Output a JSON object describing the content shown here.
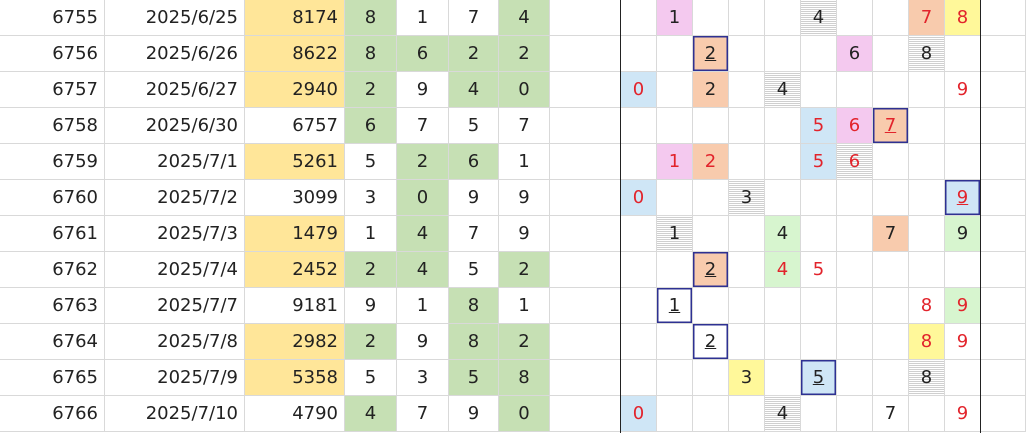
{
  "columns": [
    "row_no",
    "date",
    "number",
    "d1",
    "d2",
    "d3",
    "d4"
  ],
  "colors": {
    "number_yellow": "#ffe699",
    "digit_green": "#c6e0b4",
    "pink": "#f4c9ef",
    "orange": "#f8cbad",
    "lightblue": "#cfe6f6",
    "lightgreen": "#d7f5cf",
    "yellow": "#fff89a",
    "red_text": "#e2232b",
    "box_border": "#2e3192"
  },
  "rows": [
    {
      "id": "6755",
      "date": "2025/6/25",
      "number": "8174",
      "number_bg": "yellow",
      "digits": [
        {
          "v": "8",
          "g": true
        },
        {
          "v": "1",
          "g": false
        },
        {
          "v": "7",
          "g": false
        },
        {
          "v": "4",
          "g": true
        }
      ],
      "grid": [
        {
          "col": 1,
          "v": "1",
          "bg": "pink"
        },
        {
          "col": 5,
          "v": "4",
          "stripe": true
        },
        {
          "col": 8,
          "v": "7",
          "bg": "orange",
          "red": true
        },
        {
          "col": 9,
          "v": "8",
          "bg": "yellow",
          "red": true
        }
      ]
    },
    {
      "id": "6756",
      "date": "2025/6/26",
      "number": "8622",
      "number_bg": "yellow",
      "digits": [
        {
          "v": "8",
          "g": true
        },
        {
          "v": "6",
          "g": true
        },
        {
          "v": "2",
          "g": true
        },
        {
          "v": "2",
          "g": true
        }
      ],
      "grid": [
        {
          "col": 2,
          "v": "2",
          "bg": "orange",
          "box": true,
          "ul": true
        },
        {
          "col": 6,
          "v": "6",
          "bg": "pink"
        },
        {
          "col": 8,
          "v": "8",
          "stripe": true
        }
      ]
    },
    {
      "id": "6757",
      "date": "2025/6/27",
      "number": "2940",
      "number_bg": "yellow",
      "digits": [
        {
          "v": "2",
          "g": true
        },
        {
          "v": "9",
          "g": false
        },
        {
          "v": "4",
          "g": true
        },
        {
          "v": "0",
          "g": true
        }
      ],
      "grid": [
        {
          "col": 0,
          "v": "0",
          "bg": "lightblue",
          "red": true
        },
        {
          "col": 2,
          "v": "2",
          "bg": "orange"
        },
        {
          "col": 4,
          "v": "4",
          "stripe": true
        },
        {
          "col": 9,
          "v": "9",
          "red": true
        }
      ]
    },
    {
      "id": "6758",
      "date": "2025/6/30",
      "number": "6757",
      "number_bg": "white",
      "digits": [
        {
          "v": "6",
          "g": true
        },
        {
          "v": "7",
          "g": false
        },
        {
          "v": "5",
          "g": false
        },
        {
          "v": "7",
          "g": false
        }
      ],
      "grid": [
        {
          "col": 5,
          "v": "5",
          "bg": "lightblue",
          "red": true
        },
        {
          "col": 6,
          "v": "6",
          "bg": "pink",
          "red": true
        },
        {
          "col": 7,
          "v": "7",
          "bg": "orange",
          "red": true,
          "box": true,
          "ul": true
        }
      ]
    },
    {
      "id": "6759",
      "date": "2025/7/1",
      "number": "5261",
      "number_bg": "yellow",
      "digits": [
        {
          "v": "5",
          "g": false
        },
        {
          "v": "2",
          "g": true
        },
        {
          "v": "6",
          "g": true
        },
        {
          "v": "1",
          "g": false
        }
      ],
      "grid": [
        {
          "col": 1,
          "v": "1",
          "bg": "pink",
          "red": true
        },
        {
          "col": 2,
          "v": "2",
          "bg": "orange",
          "red": true
        },
        {
          "col": 5,
          "v": "5",
          "bg": "lightblue",
          "red": true
        },
        {
          "col": 6,
          "v": "6",
          "red": true,
          "stripe": true
        }
      ]
    },
    {
      "id": "6760",
      "date": "2025/7/2",
      "number": "3099",
      "number_bg": "white",
      "digits": [
        {
          "v": "3",
          "g": false
        },
        {
          "v": "0",
          "g": true
        },
        {
          "v": "9",
          "g": false
        },
        {
          "v": "9",
          "g": false
        }
      ],
      "grid": [
        {
          "col": 0,
          "v": "0",
          "bg": "lightblue",
          "red": true
        },
        {
          "col": 3,
          "v": "3",
          "stripe": true
        },
        {
          "col": 9,
          "v": "9",
          "bg": "lightblue",
          "red": true,
          "box": true,
          "ul": true
        }
      ]
    },
    {
      "id": "6761",
      "date": "2025/7/3",
      "number": "1479",
      "number_bg": "yellow",
      "digits": [
        {
          "v": "1",
          "g": false
        },
        {
          "v": "4",
          "g": true
        },
        {
          "v": "7",
          "g": false
        },
        {
          "v": "9",
          "g": false
        }
      ],
      "grid": [
        {
          "col": 1,
          "v": "1",
          "stripe": true
        },
        {
          "col": 4,
          "v": "4",
          "bg": "lightgreen"
        },
        {
          "col": 7,
          "v": "7",
          "bg": "orange"
        },
        {
          "col": 9,
          "v": "9",
          "bg": "lightgreen"
        }
      ]
    },
    {
      "id": "6762",
      "date": "2025/7/4",
      "number": "2452",
      "number_bg": "yellow",
      "digits": [
        {
          "v": "2",
          "g": true
        },
        {
          "v": "4",
          "g": true
        },
        {
          "v": "5",
          "g": false
        },
        {
          "v": "2",
          "g": true
        }
      ],
      "grid": [
        {
          "col": 2,
          "v": "2",
          "bg": "orange",
          "box": true,
          "ul": true
        },
        {
          "col": 4,
          "v": "4",
          "bg": "lightgreen",
          "red": true
        },
        {
          "col": 5,
          "v": "5",
          "red": true
        }
      ]
    },
    {
      "id": "6763",
      "date": "2025/7/7",
      "number": "9181",
      "number_bg": "white",
      "digits": [
        {
          "v": "9",
          "g": false
        },
        {
          "v": "1",
          "g": false
        },
        {
          "v": "8",
          "g": true
        },
        {
          "v": "1",
          "g": false
        }
      ],
      "grid": [
        {
          "col": 1,
          "v": "1",
          "box": true,
          "ul": true
        },
        {
          "col": 8,
          "v": "8",
          "red": true
        },
        {
          "col": 9,
          "v": "9",
          "bg": "lightgreen",
          "red": true
        }
      ]
    },
    {
      "id": "6764",
      "date": "2025/7/8",
      "number": "2982",
      "number_bg": "yellow",
      "digits": [
        {
          "v": "2",
          "g": true
        },
        {
          "v": "9",
          "g": false
        },
        {
          "v": "8",
          "g": true
        },
        {
          "v": "2",
          "g": true
        }
      ],
      "grid": [
        {
          "col": 2,
          "v": "2",
          "box": true,
          "ul": true
        },
        {
          "col": 8,
          "v": "8",
          "bg": "yellow",
          "red": true
        },
        {
          "col": 9,
          "v": "9",
          "red": true
        }
      ]
    },
    {
      "id": "6765",
      "date": "2025/7/9",
      "number": "5358",
      "number_bg": "yellow",
      "digits": [
        {
          "v": "5",
          "g": false
        },
        {
          "v": "3",
          "g": false
        },
        {
          "v": "5",
          "g": true
        },
        {
          "v": "8",
          "g": true
        }
      ],
      "grid": [
        {
          "col": 3,
          "v": "3",
          "bg": "yellow"
        },
        {
          "col": 5,
          "v": "5",
          "bg": "lightblue",
          "box": true,
          "ul": true
        },
        {
          "col": 8,
          "v": "8",
          "stripe": true
        }
      ]
    },
    {
      "id": "6766",
      "date": "2025/7/10",
      "number": "4790",
      "number_bg": "white",
      "digits": [
        {
          "v": "4",
          "g": true
        },
        {
          "v": "7",
          "g": false
        },
        {
          "v": "9",
          "g": false
        },
        {
          "v": "0",
          "g": true
        }
      ],
      "grid": [
        {
          "col": 0,
          "v": "0",
          "bg": "lightblue",
          "red": true
        },
        {
          "col": 4,
          "v": "4",
          "stripe": true
        },
        {
          "col": 7,
          "v": "7"
        },
        {
          "col": 9,
          "v": "9",
          "red": true
        }
      ]
    }
  ]
}
